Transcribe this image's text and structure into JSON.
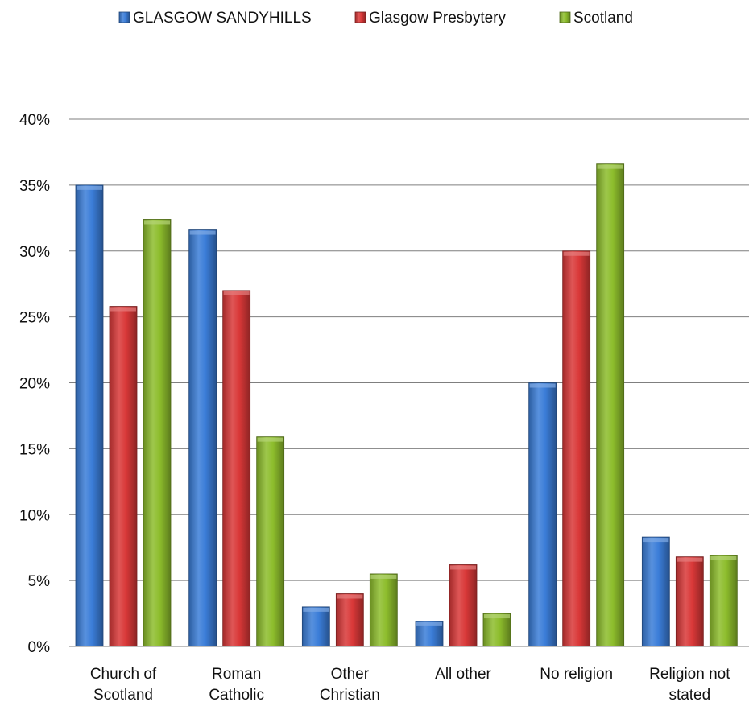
{
  "chart_data": {
    "type": "bar",
    "categories": [
      [
        "Church of",
        "Scotland"
      ],
      [
        "Roman",
        "Catholic"
      ],
      [
        "Other",
        "Christian"
      ],
      [
        "All other"
      ],
      [
        "No religion"
      ],
      [
        "Religion not",
        "stated"
      ]
    ],
    "series": [
      {
        "name": "GLASGOW SANDYHILLS",
        "color": "#3b7dd8",
        "values": [
          35.0,
          31.6,
          3.0,
          1.9,
          20.0,
          8.3
        ]
      },
      {
        "name": "Glasgow Presbytery",
        "color": "#d93838",
        "values": [
          25.8,
          27.0,
          4.0,
          6.2,
          30.0,
          6.8
        ]
      },
      {
        "name": "Scotland",
        "color": "#8dbd2c",
        "values": [
          32.4,
          15.9,
          5.5,
          2.5,
          36.6,
          6.9
        ]
      }
    ],
    "ylim": [
      0,
      40
    ],
    "yticks": [
      "0%",
      "5%",
      "10%",
      "15%",
      "20%",
      "25%",
      "30%",
      "35%",
      "40%"
    ],
    "grid": true,
    "legend": "top"
  }
}
